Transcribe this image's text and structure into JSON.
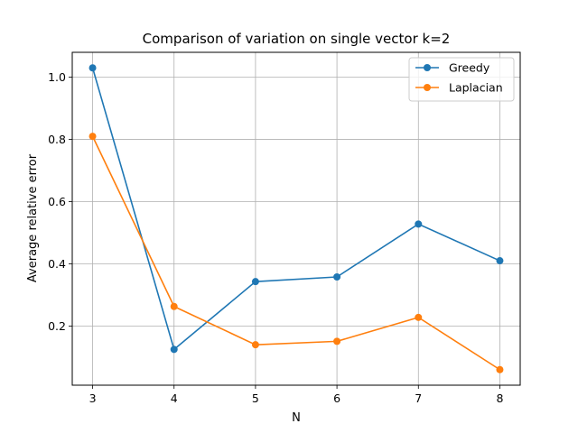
{
  "chart_data": {
    "type": "line",
    "title": "Comparison of variation on single vector k=2",
    "xlabel": "N",
    "ylabel": "Average relative error",
    "x": [
      3,
      4,
      5,
      6,
      7,
      8
    ],
    "xlim": [
      2.75,
      8.25
    ],
    "ylim": [
      0.01,
      1.08
    ],
    "xticks": [
      3,
      4,
      5,
      6,
      7,
      8
    ],
    "yticks": [
      0.2,
      0.4,
      0.6,
      0.8,
      1.0
    ],
    "ytick_labels": [
      "0.2",
      "0.4",
      "0.6",
      "0.8",
      "1.0"
    ],
    "grid": true,
    "legend_position": "top-right",
    "series": [
      {
        "name": "Greedy",
        "color": "#1f77b4",
        "values": [
          1.03,
          0.125,
          0.343,
          0.358,
          0.528,
          0.41
        ]
      },
      {
        "name": "Laplacian",
        "color": "#ff7f0e",
        "values": [
          0.81,
          0.263,
          0.14,
          0.151,
          0.228,
          0.06
        ]
      }
    ]
  }
}
